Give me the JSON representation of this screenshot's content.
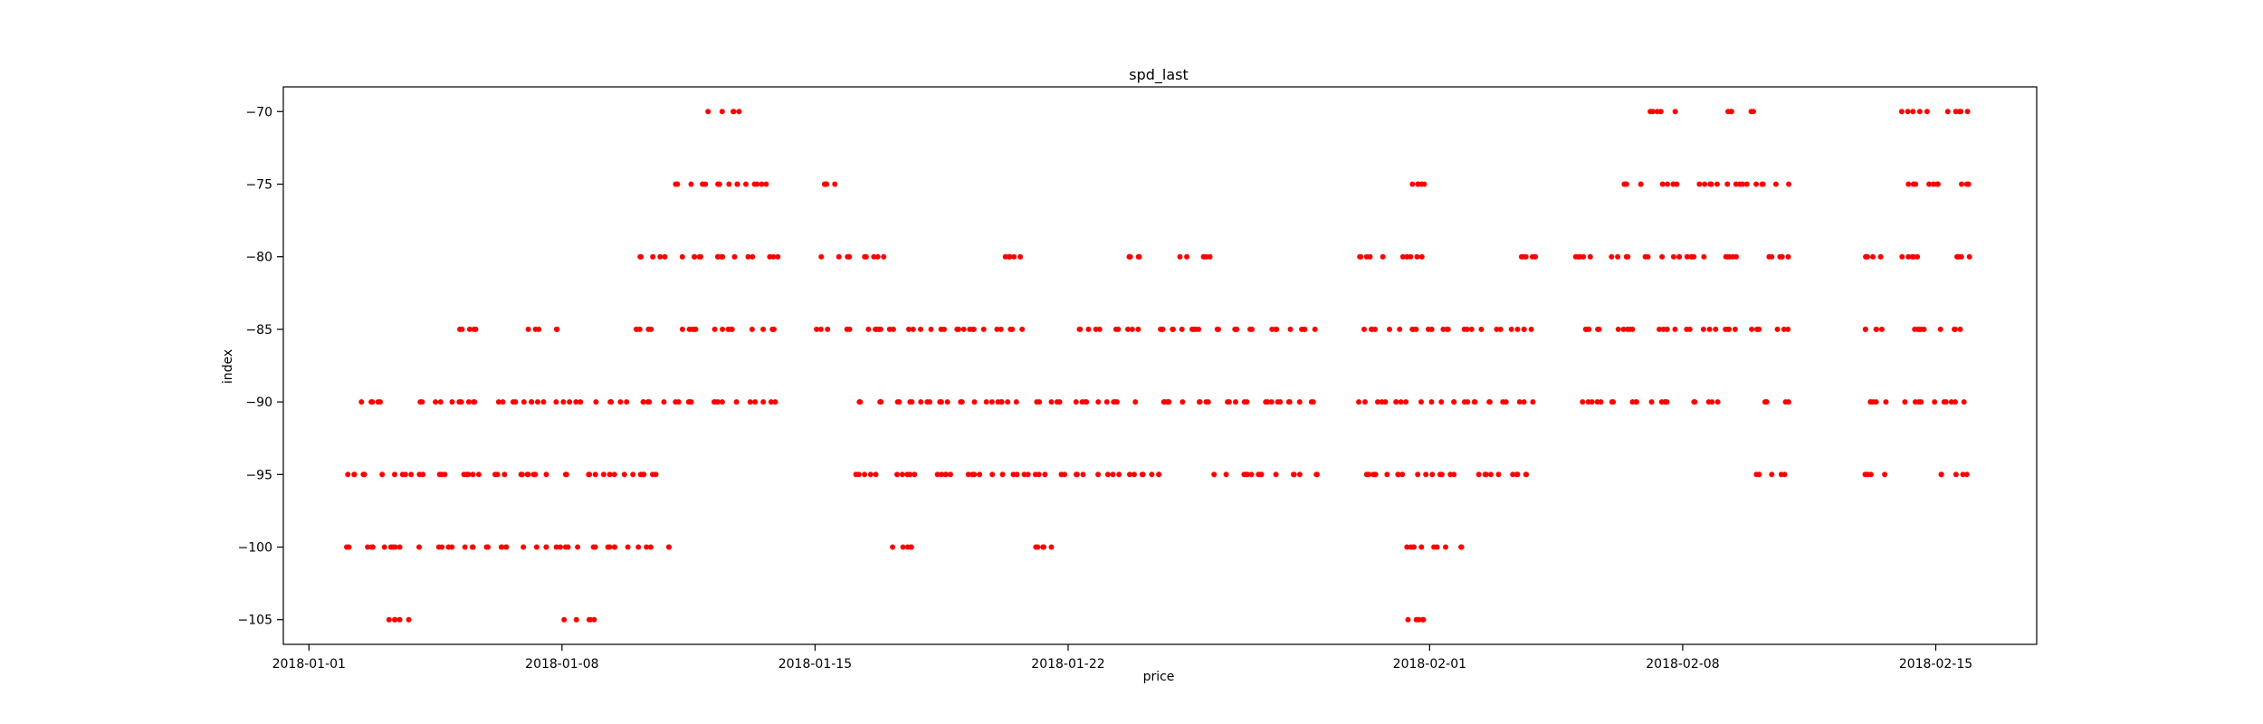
{
  "chart_data": {
    "type": "scatter",
    "title": "spd_last",
    "xlabel": "price",
    "ylabel": "index",
    "x_axis_type": "date",
    "xlim": [
      "2017-12-31T07:00",
      "2018-02-17T19:00"
    ],
    "ylim": [
      -106.7,
      -68.3
    ],
    "x_ticks": [
      "2018-01-01",
      "2018-01-08",
      "2018-01-15",
      "2018-01-22",
      "2018-02-01",
      "2018-02-08",
      "2018-02-15"
    ],
    "y_ticks": [
      -70,
      -75,
      -80,
      -85,
      -90,
      -95,
      -100,
      -105
    ],
    "grid": false,
    "legend": "none",
    "marker_color": "#ff0000",
    "series": [
      {
        "values": [
          {
            "date": "2018-01-02",
            "y": [
              -90,
              -95,
              -100
            ]
          },
          {
            "date": "2018-01-03",
            "y": [
              -95,
              -100,
              -105
            ]
          },
          {
            "date": "2018-01-04",
            "y": [
              -90,
              -95,
              -100
            ]
          },
          {
            "date": "2018-01-05",
            "y": [
              -85,
              -90,
              -95,
              -100
            ]
          },
          {
            "date": "2018-01-06",
            "y": [
              -90,
              -95,
              -100
            ]
          },
          {
            "date": "2018-01-07",
            "y": [
              -85,
              -90,
              -95,
              -100
            ]
          },
          {
            "date": "2018-01-08",
            "y": [
              -90,
              -95,
              -100,
              -105
            ]
          },
          {
            "date": "2018-01-09",
            "y": [
              -90,
              -95,
              -100
            ]
          },
          {
            "date": "2018-01-10",
            "y": [
              -80,
              -85,
              -90,
              -95,
              -100
            ]
          },
          {
            "date": "2018-01-11",
            "y": [
              -75,
              -80,
              -85,
              -90
            ]
          },
          {
            "date": "2018-01-12",
            "y": [
              -70,
              -75,
              -80,
              -85,
              -90
            ]
          },
          {
            "date": "2018-01-13",
            "y": [
              -75,
              -80,
              -85,
              -90
            ]
          },
          {
            "date": "2018-01-15",
            "y": [
              -75,
              -80,
              -85
            ]
          },
          {
            "date": "2018-01-16",
            "y": [
              -80,
              -85,
              -90,
              -95
            ]
          },
          {
            "date": "2018-01-17",
            "y": [
              -85,
              -90,
              -95,
              -100
            ]
          },
          {
            "date": "2018-01-18",
            "y": [
              -85,
              -90,
              -95
            ]
          },
          {
            "date": "2018-01-19",
            "y": [
              -85,
              -90,
              -95
            ]
          },
          {
            "date": "2018-01-20",
            "y": [
              -80,
              -85,
              -90,
              -95
            ]
          },
          {
            "date": "2018-01-21",
            "y": [
              -90,
              -95,
              -100
            ]
          },
          {
            "date": "2018-01-22",
            "y": [
              -85,
              -90,
              -95
            ]
          },
          {
            "date": "2018-01-23",
            "y": [
              -80,
              -85,
              -90,
              -95
            ]
          },
          {
            "date": "2018-01-24",
            "y": [
              -85,
              -90,
              -95
            ]
          },
          {
            "date": "2018-01-25",
            "y": [
              -80,
              -85,
              -90
            ]
          },
          {
            "date": "2018-01-26",
            "y": [
              -85,
              -90,
              -95
            ]
          },
          {
            "date": "2018-01-27",
            "y": [
              -85,
              -90,
              -95
            ]
          },
          {
            "date": "2018-01-28",
            "y": [
              -85,
              -90,
              -95
            ]
          },
          {
            "date": "2018-01-30",
            "y": [
              -80,
              -85,
              -90,
              -95
            ]
          },
          {
            "date": "2018-01-31",
            "y": [
              -75,
              -80,
              -85,
              -90,
              -95,
              -100,
              -105
            ]
          },
          {
            "date": "2018-02-01",
            "y": [
              -85,
              -90,
              -95,
              -100
            ]
          },
          {
            "date": "2018-02-02",
            "y": [
              -85,
              -90,
              -95
            ]
          },
          {
            "date": "2018-02-03",
            "y": [
              -80,
              -85,
              -90,
              -95
            ]
          },
          {
            "date": "2018-02-05",
            "y": [
              -80,
              -85,
              -90
            ]
          },
          {
            "date": "2018-02-06",
            "y": [
              -75,
              -80,
              -85,
              -90
            ]
          },
          {
            "date": "2018-02-07",
            "y": [
              -70,
              -75,
              -80,
              -85,
              -90
            ]
          },
          {
            "date": "2018-02-08",
            "y": [
              -75,
              -80,
              -85,
              -90
            ]
          },
          {
            "date": "2018-02-09",
            "y": [
              -70,
              -75,
              -80,
              -85
            ]
          },
          {
            "date": "2018-02-10",
            "y": [
              -75,
              -80,
              -85,
              -90,
              -95
            ]
          },
          {
            "date": "2018-02-13",
            "y": [
              -80,
              -85,
              -90,
              -95
            ]
          },
          {
            "date": "2018-02-14",
            "y": [
              -70,
              -75,
              -80,
              -85,
              -90
            ]
          },
          {
            "date": "2018-02-15",
            "y": [
              -70,
              -75,
              -80,
              -85,
              -90,
              -95
            ]
          }
        ]
      }
    ]
  }
}
